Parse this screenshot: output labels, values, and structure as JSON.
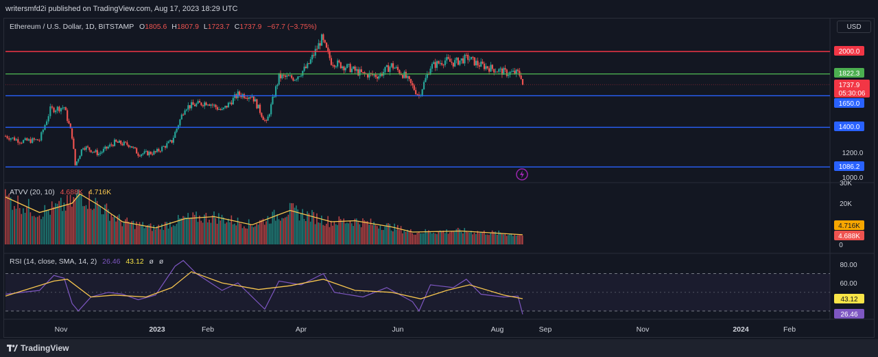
{
  "header": {
    "publisher_line": "writersmfd2i published on TradingView.com, Aug 17, 2023 18:29 UTC"
  },
  "toolbar": {
    "currency_label": "USD"
  },
  "legend": {
    "symbol": "Ethereum / U.S. Dollar, 1D, BITSTAMP",
    "o_key": "O",
    "o_val": "1805.6",
    "h_key": "H",
    "h_val": "1807.9",
    "l_key": "L",
    "l_val": "1723.7",
    "c_key": "C",
    "c_val": "1737.9",
    "change": "−67.7 (−3.75%)"
  },
  "volume_legend": {
    "name": "ATVV (20, 10)",
    "v1": "4.688K",
    "v2": "4.716K"
  },
  "rsi_legend": {
    "name": "RSI (14, close, SMA, 14, 2)",
    "v1": "26.46",
    "v2": "43.12",
    "v3": "ø",
    "v4": "ø"
  },
  "footer": {
    "brand": "TradingView"
  },
  "colors": {
    "up": "#26a69a",
    "down": "#ef5350",
    "red_line": "#f23645",
    "green_line": "#4caf50",
    "blue_line": "#2962ff",
    "ma_line": "#f9c74f",
    "rsi_line": "#7e57c2",
    "bg": "#131722"
  },
  "chart_data": {
    "type": "candlestick",
    "x_axis_labels": [
      "Nov",
      "2023",
      "Feb",
      "Apr",
      "Jun",
      "Aug",
      "Sep",
      "Nov",
      "2024",
      "Feb"
    ],
    "price_axis": {
      "ticks": [
        "1200.0",
        "1000.0"
      ],
      "range": [
        1000,
        2180
      ]
    },
    "horizontal_levels": [
      {
        "value": 2000.0,
        "label": "2000.0",
        "color": "#f23645"
      },
      {
        "value": 1822.3,
        "label": "1822.3",
        "color": "#4caf50"
      },
      {
        "value": 1650.0,
        "label": "1650.0",
        "color": "#2962ff"
      },
      {
        "value": 1400.0,
        "label": "1400.0",
        "color": "#2962ff"
      },
      {
        "value": 1086.2,
        "label": "1086.2",
        "color": "#2962ff"
      }
    ],
    "last_price": {
      "value": 1737.9,
      "label": "1737.9",
      "countdown": "05:30:06"
    },
    "close_path": [
      {
        "date": "2022-10-01",
        "close": 1330
      },
      {
        "date": "2022-10-10",
        "close": 1290
      },
      {
        "date": "2022-10-20",
        "close": 1300
      },
      {
        "date": "2022-10-26",
        "close": 1540
      },
      {
        "date": "2022-11-03",
        "close": 1560
      },
      {
        "date": "2022-11-08",
        "close": 1330
      },
      {
        "date": "2022-11-10",
        "close": 1100
      },
      {
        "date": "2022-11-15",
        "close": 1250
      },
      {
        "date": "2022-11-25",
        "close": 1190
      },
      {
        "date": "2022-12-05",
        "close": 1280
      },
      {
        "date": "2022-12-15",
        "close": 1260
      },
      {
        "date": "2022-12-20",
        "close": 1190
      },
      {
        "date": "2022-12-31",
        "close": 1200
      },
      {
        "date": "2023-01-10",
        "close": 1290
      },
      {
        "date": "2023-01-18",
        "close": 1560
      },
      {
        "date": "2023-02-01",
        "close": 1600
      },
      {
        "date": "2023-02-10",
        "close": 1530
      },
      {
        "date": "2023-02-20",
        "close": 1660
      },
      {
        "date": "2023-03-01",
        "close": 1650
      },
      {
        "date": "2023-03-10",
        "close": 1430
      },
      {
        "date": "2023-03-18",
        "close": 1800
      },
      {
        "date": "2023-03-28",
        "close": 1790
      },
      {
        "date": "2023-04-05",
        "close": 1880
      },
      {
        "date": "2023-04-14",
        "close": 2100
      },
      {
        "date": "2023-04-20",
        "close": 1920
      },
      {
        "date": "2023-05-01",
        "close": 1870
      },
      {
        "date": "2023-05-10",
        "close": 1820
      },
      {
        "date": "2023-05-20",
        "close": 1810
      },
      {
        "date": "2023-05-28",
        "close": 1890
      },
      {
        "date": "2023-06-05",
        "close": 1810
      },
      {
        "date": "2023-06-14",
        "close": 1650
      },
      {
        "date": "2023-06-21",
        "close": 1880
      },
      {
        "date": "2023-06-30",
        "close": 1930
      },
      {
        "date": "2023-07-05",
        "close": 1910
      },
      {
        "date": "2023-07-14",
        "close": 1950
      },
      {
        "date": "2023-07-20",
        "close": 1900
      },
      {
        "date": "2023-07-30",
        "close": 1860
      },
      {
        "date": "2023-08-07",
        "close": 1830
      },
      {
        "date": "2023-08-14",
        "close": 1830
      },
      {
        "date": "2023-08-16",
        "close": 1805.6
      },
      {
        "date": "2023-08-17",
        "close": 1737.9
      }
    ],
    "volume_pane": {
      "axis_ticks": [
        "30K",
        "20K",
        "10K",
        "0"
      ],
      "range": [
        0,
        30000
      ],
      "ma_last": 4716,
      "vol_last": 4688,
      "ma_path": [
        {
          "date": "2022-10-01",
          "value": 23000
        },
        {
          "date": "2022-10-20",
          "value": 15500
        },
        {
          "date": "2022-11-08",
          "value": 20000
        },
        {
          "date": "2022-11-13",
          "value": 24500
        },
        {
          "date": "2022-11-25",
          "value": 19000
        },
        {
          "date": "2022-12-10",
          "value": 11000
        },
        {
          "date": "2022-12-31",
          "value": 8000
        },
        {
          "date": "2023-01-18",
          "value": 12500
        },
        {
          "date": "2023-02-05",
          "value": 13500
        },
        {
          "date": "2023-03-01",
          "value": 9500
        },
        {
          "date": "2023-03-18",
          "value": 14500
        },
        {
          "date": "2023-03-25",
          "value": 16500
        },
        {
          "date": "2023-04-20",
          "value": 11000
        },
        {
          "date": "2023-05-05",
          "value": 11500
        },
        {
          "date": "2023-05-28",
          "value": 8500
        },
        {
          "date": "2023-06-10",
          "value": 6000
        },
        {
          "date": "2023-07-10",
          "value": 6500
        },
        {
          "date": "2023-08-17",
          "value": 4716
        }
      ]
    },
    "rsi_pane": {
      "axis_ticks": [
        "80.00",
        "60.00"
      ],
      "range": [
        20,
        90
      ],
      "bands": [
        70,
        50,
        30
      ],
      "rsi_last": 26.46,
      "sma_last": 43.12,
      "rsi_path": [
        {
          "date": "2022-10-01",
          "value": 48
        },
        {
          "date": "2022-10-20",
          "value": 52
        },
        {
          "date": "2022-10-28",
          "value": 68
        },
        {
          "date": "2022-11-03",
          "value": 65
        },
        {
          "date": "2022-11-08",
          "value": 38
        },
        {
          "date": "2022-11-12",
          "value": 30
        },
        {
          "date": "2022-11-20",
          "value": 45
        },
        {
          "date": "2022-12-01",
          "value": 50
        },
        {
          "date": "2022-12-10",
          "value": 48
        },
        {
          "date": "2022-12-20",
          "value": 42
        },
        {
          "date": "2022-12-31",
          "value": 47
        },
        {
          "date": "2023-01-12",
          "value": 78
        },
        {
          "date": "2023-01-17",
          "value": 84
        },
        {
          "date": "2023-01-25",
          "value": 70
        },
        {
          "date": "2023-02-10",
          "value": 52
        },
        {
          "date": "2023-02-20",
          "value": 60
        },
        {
          "date": "2023-03-09",
          "value": 32
        },
        {
          "date": "2023-03-18",
          "value": 62
        },
        {
          "date": "2023-04-01",
          "value": 58
        },
        {
          "date": "2023-04-15",
          "value": 70
        },
        {
          "date": "2023-04-22",
          "value": 50
        },
        {
          "date": "2023-05-10",
          "value": 45
        },
        {
          "date": "2023-05-25",
          "value": 55
        },
        {
          "date": "2023-06-10",
          "value": 40
        },
        {
          "date": "2023-06-14",
          "value": 30
        },
        {
          "date": "2023-06-21",
          "value": 58
        },
        {
          "date": "2023-07-05",
          "value": 55
        },
        {
          "date": "2023-07-13",
          "value": 64
        },
        {
          "date": "2023-07-22",
          "value": 48
        },
        {
          "date": "2023-08-05",
          "value": 45
        },
        {
          "date": "2023-08-14",
          "value": 46
        },
        {
          "date": "2023-08-17",
          "value": 26.46
        }
      ],
      "sma_path": [
        {
          "date": "2022-10-01",
          "value": 46
        },
        {
          "date": "2022-10-28",
          "value": 62
        },
        {
          "date": "2022-11-05",
          "value": 64
        },
        {
          "date": "2022-11-20",
          "value": 45
        },
        {
          "date": "2022-12-05",
          "value": 47
        },
        {
          "date": "2022-12-25",
          "value": 45
        },
        {
          "date": "2023-01-10",
          "value": 55
        },
        {
          "date": "2023-01-22",
          "value": 72
        },
        {
          "date": "2023-02-10",
          "value": 60
        },
        {
          "date": "2023-03-05",
          "value": 53
        },
        {
          "date": "2023-03-25",
          "value": 57
        },
        {
          "date": "2023-04-15",
          "value": 64
        },
        {
          "date": "2023-05-05",
          "value": 52
        },
        {
          "date": "2023-05-28",
          "value": 50
        },
        {
          "date": "2023-06-15",
          "value": 43
        },
        {
          "date": "2023-07-01",
          "value": 52
        },
        {
          "date": "2023-07-15",
          "value": 58
        },
        {
          "date": "2023-08-05",
          "value": 47
        },
        {
          "date": "2023-08-17",
          "value": 43.12
        }
      ]
    }
  }
}
